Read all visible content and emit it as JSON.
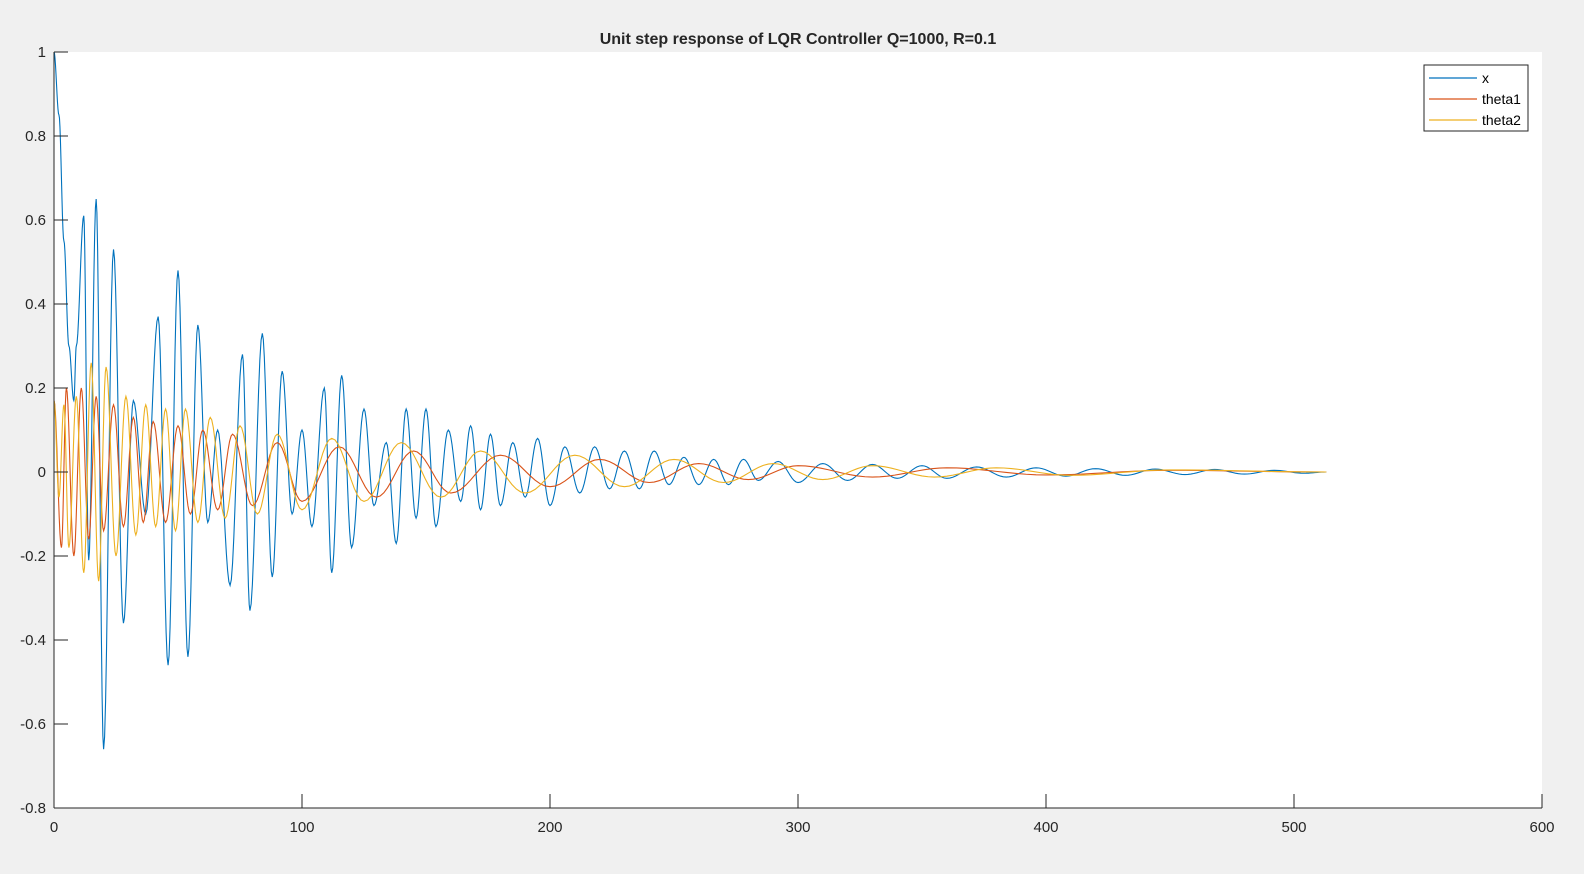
{
  "chart_data": {
    "type": "line",
    "title": "Unit step response of LQR Controller Q=1000, R=0.1",
    "xlabel": "",
    "ylabel": "",
    "xlim": [
      0,
      600
    ],
    "ylim": [
      -0.8,
      1
    ],
    "xticks": [
      0,
      100,
      200,
      300,
      400,
      500,
      600
    ],
    "yticks": [
      1,
      0.8,
      0.6,
      0.4,
      0.2,
      0,
      -0.2,
      -0.4,
      -0.6,
      -0.8
    ],
    "xtick_labels": [
      "0",
      "100",
      "200",
      "300",
      "400",
      "500",
      "600"
    ],
    "ytick_labels": [
      "1",
      "0.8",
      "0.6",
      "0.4",
      "0.2",
      "0",
      "-0.2",
      "-0.4",
      "-0.6",
      "-0.8"
    ],
    "grid": false,
    "legend_position": "top-right",
    "series": [
      {
        "name": "x",
        "color": "#0072BD",
        "x": [
          0,
          2,
          4,
          6,
          8,
          9,
          12,
          14,
          17,
          20,
          24,
          28,
          32,
          37,
          42,
          46,
          50,
          54,
          58,
          62,
          66,
          71,
          76,
          79,
          84,
          88,
          92,
          96,
          100,
          104,
          109,
          112,
          116,
          120,
          125,
          129,
          134,
          138,
          142,
          146,
          150,
          154,
          159,
          164,
          168,
          172,
          176,
          180,
          185,
          190,
          195,
          200,
          206,
          212,
          218,
          224,
          230,
          236,
          242,
          248,
          254,
          260,
          266,
          272,
          278,
          284,
          292,
          300,
          310,
          320,
          330,
          340,
          350,
          360,
          372,
          384,
          396,
          408,
          420,
          432,
          444,
          456,
          468,
          480,
          492,
          504,
          513
        ],
        "values": [
          1,
          0.85,
          0.55,
          0.3,
          0.17,
          0.3,
          0.61,
          -0.21,
          0.65,
          -0.66,
          0.53,
          -0.36,
          0.17,
          -0.1,
          0.37,
          -0.46,
          0.48,
          -0.44,
          0.35,
          -0.12,
          0.1,
          -0.27,
          0.28,
          -0.33,
          0.33,
          -0.25,
          0.24,
          -0.1,
          0.1,
          -0.13,
          0.2,
          -0.24,
          0.23,
          -0.18,
          0.15,
          -0.08,
          0.07,
          -0.17,
          0.15,
          -0.11,
          0.15,
          -0.13,
          0.1,
          -0.07,
          0.11,
          -0.09,
          0.09,
          -0.08,
          0.07,
          -0.06,
          0.08,
          -0.08,
          0.06,
          -0.05,
          0.06,
          -0.04,
          0.05,
          -0.04,
          0.05,
          -0.03,
          0.035,
          -0.03,
          0.03,
          -0.03,
          0.03,
          -0.02,
          0.025,
          -0.025,
          0.02,
          -0.02,
          0.018,
          -0.015,
          0.015,
          -0.015,
          0.012,
          -0.012,
          0.01,
          -0.01,
          0.008,
          -0.008,
          0.007,
          -0.006,
          0.006,
          -0.005,
          0.004,
          -0.003,
          0
        ]
      },
      {
        "name": "theta1",
        "color": "#D95319",
        "x": [
          0,
          3,
          5,
          8,
          11,
          14,
          17,
          20,
          24,
          28,
          32,
          36,
          40,
          45,
          50,
          55,
          60,
          66,
          72,
          80,
          90,
          100,
          115,
          130,
          145,
          160,
          180,
          200,
          220,
          240,
          260,
          280,
          300,
          330,
          360,
          400,
          450,
          513
        ],
        "values": [
          0.17,
          -0.18,
          0.2,
          -0.2,
          0.2,
          -0.16,
          0.18,
          -0.14,
          0.16,
          -0.13,
          0.13,
          -0.12,
          0.12,
          -0.12,
          0.11,
          -0.1,
          0.1,
          -0.09,
          0.09,
          -0.08,
          0.07,
          -0.07,
          0.06,
          -0.06,
          0.05,
          -0.05,
          0.04,
          -0.035,
          0.03,
          -0.025,
          0.02,
          -0.018,
          0.015,
          -0.012,
          0.01,
          -0.007,
          0.004,
          0
        ]
      },
      {
        "name": "theta2",
        "color": "#EDB120",
        "x": [
          0,
          2,
          4,
          6,
          9,
          12,
          15,
          18,
          21,
          25,
          29,
          33,
          37,
          41,
          45,
          49,
          53,
          58,
          63,
          69,
          75,
          82,
          90,
          100,
          112,
          125,
          140,
          156,
          172,
          190,
          210,
          230,
          250,
          270,
          290,
          310,
          330,
          355,
          380,
          410,
          450,
          513
        ],
        "values": [
          0.17,
          -0.06,
          0.16,
          -0.18,
          0.18,
          -0.24,
          0.26,
          -0.26,
          0.25,
          -0.2,
          0.18,
          -0.15,
          0.16,
          -0.13,
          0.15,
          -0.14,
          0.15,
          -0.12,
          0.13,
          -0.11,
          0.11,
          -0.1,
          0.09,
          -0.09,
          0.08,
          -0.07,
          0.07,
          -0.06,
          0.05,
          -0.05,
          0.04,
          -0.035,
          0.03,
          -0.025,
          0.02,
          -0.018,
          0.015,
          -0.012,
          0.01,
          -0.008,
          0.005,
          0
        ]
      }
    ]
  }
}
